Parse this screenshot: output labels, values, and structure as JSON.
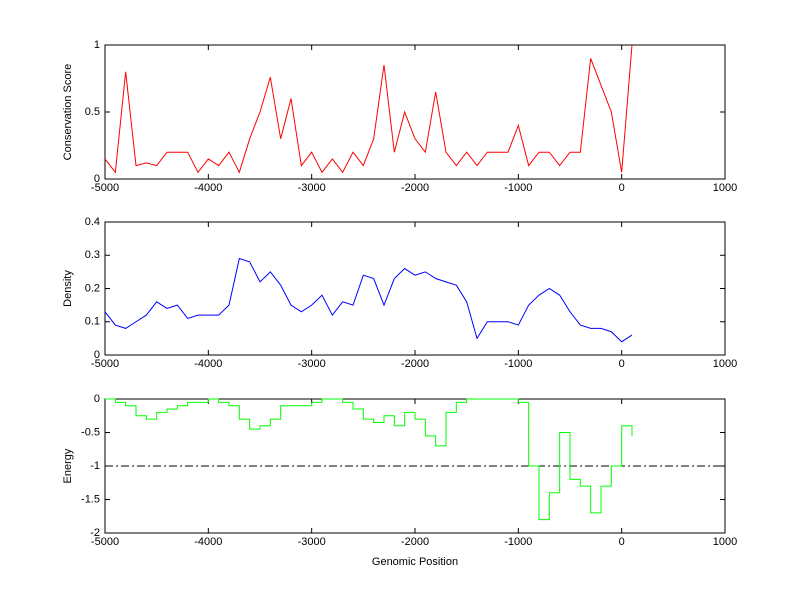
{
  "chart_data": [
    {
      "type": "line",
      "ylabel": "Conservation Score",
      "color": "#ff0000",
      "x": [
        -5000,
        -4900,
        -4800,
        -4700,
        -4600,
        -4500,
        -4400,
        -4300,
        -4200,
        -4100,
        -4000,
        -3900,
        -3800,
        -3700,
        -3600,
        -3500,
        -3400,
        -3300,
        -3200,
        -3100,
        -3000,
        -2900,
        -2800,
        -2700,
        -2600,
        -2500,
        -2400,
        -2300,
        -2200,
        -2100,
        -2000,
        -1900,
        -1800,
        -1700,
        -1600,
        -1500,
        -1400,
        -1300,
        -1200,
        -1100,
        -1000,
        -900,
        -800,
        -700,
        -600,
        -500,
        -400,
        -300,
        -200,
        -100,
        0,
        100
      ],
      "values": [
        0.15,
        0.05,
        0.8,
        0.1,
        0.12,
        0.1,
        0.2,
        0.2,
        0.2,
        0.05,
        0.15,
        0.1,
        0.2,
        0.05,
        0.3,
        0.5,
        0.76,
        0.3,
        0.6,
        0.1,
        0.2,
        0.05,
        0.15,
        0.05,
        0.2,
        0.1,
        0.3,
        0.85,
        0.2,
        0.5,
        0.3,
        0.2,
        0.65,
        0.2,
        0.1,
        0.2,
        0.1,
        0.2,
        0.2,
        0.2,
        0.4,
        0.1,
        0.2,
        0.2,
        0.1,
        0.2,
        0.2,
        0.9,
        0.7,
        0.5,
        0.05,
        1
      ],
      "xlim": [
        -5000,
        1000
      ],
      "xticks": [
        -5000,
        -4000,
        -3000,
        -2000,
        -1000,
        0,
        1000
      ],
      "ylim": [
        0,
        1
      ],
      "yticks": [
        0,
        0.5,
        1
      ]
    },
    {
      "type": "line",
      "ylabel": "Density",
      "color": "#0000ff",
      "x": [
        -5000,
        -4900,
        -4800,
        -4700,
        -4600,
        -4500,
        -4400,
        -4300,
        -4200,
        -4100,
        -4000,
        -3900,
        -3800,
        -3700,
        -3600,
        -3500,
        -3400,
        -3300,
        -3200,
        -3100,
        -3000,
        -2900,
        -2800,
        -2700,
        -2600,
        -2500,
        -2400,
        -2300,
        -2200,
        -2100,
        -2000,
        -1900,
        -1800,
        -1700,
        -1600,
        -1500,
        -1400,
        -1300,
        -1200,
        -1100,
        -1000,
        -900,
        -800,
        -700,
        -600,
        -500,
        -400,
        -300,
        -200,
        -100,
        0,
        100
      ],
      "values": [
        0.13,
        0.09,
        0.08,
        0.1,
        0.12,
        0.16,
        0.14,
        0.15,
        0.11,
        0.12,
        0.12,
        0.12,
        0.15,
        0.29,
        0.28,
        0.22,
        0.25,
        0.21,
        0.15,
        0.13,
        0.15,
        0.18,
        0.12,
        0.16,
        0.15,
        0.24,
        0.23,
        0.15,
        0.23,
        0.26,
        0.24,
        0.25,
        0.23,
        0.22,
        0.21,
        0.16,
        0.05,
        0.1,
        0.1,
        0.1,
        0.09,
        0.15,
        0.18,
        0.2,
        0.18,
        0.13,
        0.09,
        0.08,
        0.08,
        0.07,
        0.04,
        0.06
      ],
      "xlim": [
        -5000,
        1000
      ],
      "xticks": [
        -5000,
        -4000,
        -3000,
        -2000,
        -1000,
        0,
        1000
      ],
      "ylim": [
        0,
        0.4
      ],
      "yticks": [
        0,
        0.1,
        0.2,
        0.3,
        0.4
      ]
    },
    {
      "type": "step",
      "ylabel": "Energy",
      "xlabel": "Genomic Position",
      "color": "#00ff00",
      "x": [
        -5000,
        -4900,
        -4800,
        -4700,
        -4600,
        -4500,
        -4400,
        -4300,
        -4200,
        -4100,
        -4000,
        -3900,
        -3800,
        -3700,
        -3600,
        -3500,
        -3400,
        -3300,
        -3200,
        -3100,
        -3000,
        -2900,
        -2800,
        -2700,
        -2600,
        -2500,
        -2400,
        -2300,
        -2200,
        -2100,
        -2000,
        -1900,
        -1800,
        -1700,
        -1600,
        -1500,
        -1400,
        -1300,
        -1200,
        -1100,
        -1000,
        -900,
        -800,
        -700,
        -600,
        -500,
        -400,
        -300,
        -200,
        -100,
        0,
        100
      ],
      "values": [
        0,
        -0.05,
        -0.1,
        -0.25,
        -0.3,
        -0.2,
        -0.15,
        -0.1,
        -0.05,
        -0.05,
        0,
        -0.05,
        -0.1,
        -0.3,
        -0.45,
        -0.4,
        -0.3,
        -0.1,
        -0.1,
        -0.1,
        -0.05,
        0,
        0,
        -0.05,
        -0.15,
        -0.3,
        -0.35,
        -0.25,
        -0.4,
        -0.2,
        -0.3,
        -0.55,
        -0.7,
        -0.2,
        -0.05,
        0,
        0,
        0,
        0,
        0,
        -0.05,
        -1,
        -1.8,
        -1.4,
        -0.5,
        -1.2,
        -1.3,
        -1.7,
        -1.3,
        -1,
        -0.4,
        -0.55
      ],
      "reference_line": -1,
      "xlim": [
        -5000,
        1000
      ],
      "xticks": [
        -5000,
        -4000,
        -3000,
        -2000,
        -1000,
        0,
        1000
      ],
      "ylim": [
        -2,
        0
      ],
      "yticks": [
        -2,
        -1.5,
        -1,
        -0.5,
        0
      ]
    }
  ]
}
